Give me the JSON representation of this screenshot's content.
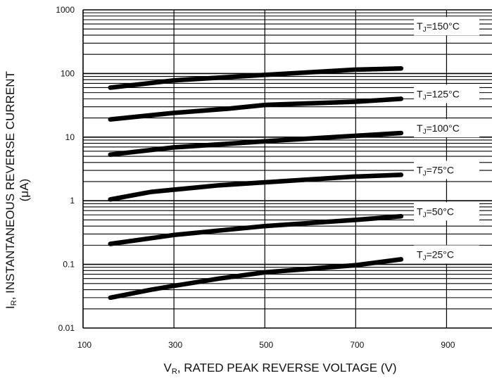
{
  "chart_data": {
    "type": "line",
    "x_axis": {
      "label_main": "V",
      "label_sub": "R",
      "label_rest": ", RATED PEAK REVERSE VOLTAGE (V)",
      "range": [
        100,
        1000
      ],
      "ticks": [
        {
          "value": 100,
          "label": "100"
        },
        {
          "value": 300,
          "label": "300"
        },
        {
          "value": 500,
          "label": "500"
        },
        {
          "value": 700,
          "label": "700"
        },
        {
          "value": 900,
          "label": "900"
        }
      ]
    },
    "y_axis": {
      "scale": "log",
      "label_main": "I",
      "label_sub": "R",
      "label_rest": ", INSTANTANEOUS REVERSE CURRENT",
      "label_unit": "(μA)",
      "range": [
        0.01,
        1000
      ],
      "ticks": [
        {
          "value": 1000,
          "label": "1000"
        },
        {
          "value": 100,
          "label": "100"
        },
        {
          "value": 10,
          "label": "10"
        },
        {
          "value": 1,
          "label": "1"
        },
        {
          "value": 0.1,
          "label": "0.1"
        },
        {
          "value": 0.01,
          "label": "0.01"
        }
      ]
    },
    "grid": true,
    "series": [
      {
        "name": "TJ=150°C",
        "label_pre": "T",
        "label_sub": "J",
        "label_post": "=150°C",
        "x": [
          160,
          300,
          500,
          700,
          800
        ],
        "y": [
          60,
          78,
          95,
          115,
          120
        ]
      },
      {
        "name": "TJ=125°C",
        "label_pre": "T",
        "label_sub": "J",
        "label_post": "=125°C",
        "x": [
          160,
          300,
          420,
          500,
          700,
          800
        ],
        "y": [
          19,
          24,
          28,
          32,
          36,
          40
        ]
      },
      {
        "name": "TJ=100°C",
        "label_pre": "T",
        "label_sub": "J",
        "label_post": "=100°C",
        "x": [
          160,
          300,
          500,
          700,
          800
        ],
        "y": [
          5.3,
          6.9,
          8.6,
          10.5,
          11.6
        ]
      },
      {
        "name": "TJ=75°C",
        "label_pre": "T",
        "label_sub": "J",
        "label_post": "=75°C",
        "x": [
          160,
          250,
          400,
          500,
          700,
          800
        ],
        "y": [
          1.05,
          1.38,
          1.75,
          1.95,
          2.4,
          2.55
        ]
      },
      {
        "name": "TJ=50°C",
        "label_pre": "T",
        "label_sub": "J",
        "label_post": "=50°C",
        "x": [
          160,
          300,
          500,
          700,
          800
        ],
        "y": [
          0.21,
          0.29,
          0.4,
          0.5,
          0.57
        ]
      },
      {
        "name": "TJ=25°C",
        "label_pre": "T",
        "label_sub": "J",
        "label_post": "=25°C",
        "x": [
          160,
          250,
          300,
          400,
          500,
          700,
          800
        ],
        "y": [
          0.03,
          0.04,
          0.046,
          0.06,
          0.075,
          0.097,
          0.12
        ]
      }
    ]
  }
}
